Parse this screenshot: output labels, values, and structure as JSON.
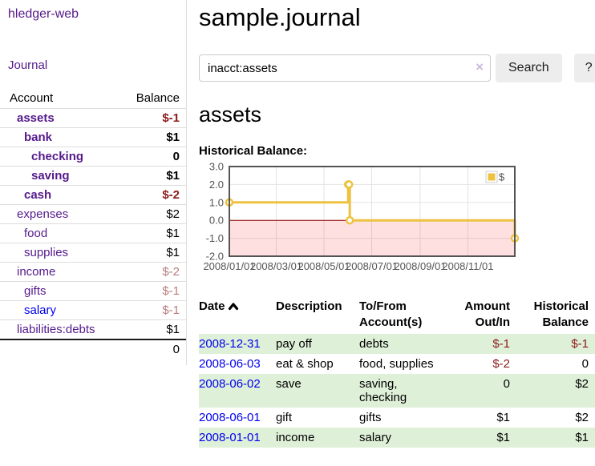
{
  "app": {
    "title": "hledger-web"
  },
  "sidebar": {
    "journal_link": "Journal",
    "accounts_table": {
      "headers": [
        "Account",
        "Balance"
      ],
      "rows": [
        {
          "name": "assets",
          "balance": "$-1",
          "depth": 1,
          "bold": true
        },
        {
          "name": "bank",
          "balance": "$1",
          "depth": 2,
          "bold": true
        },
        {
          "name": "checking",
          "balance": "0",
          "depth": 3,
          "bold": true
        },
        {
          "name": "saving",
          "balance": "$1",
          "depth": 3,
          "bold": true
        },
        {
          "name": "cash",
          "balance": "$-2",
          "depth": 2,
          "bold": true
        },
        {
          "name": "expenses",
          "balance": "$2",
          "depth": 1,
          "bold": false
        },
        {
          "name": "food",
          "balance": "$1",
          "depth": 2,
          "bold": false
        },
        {
          "name": "supplies",
          "balance": "$1",
          "depth": 2,
          "bold": false
        },
        {
          "name": "income",
          "balance": "$-2",
          "depth": 1,
          "bold": false
        },
        {
          "name": "gifts",
          "balance": "$-1",
          "depth": 2,
          "bold": false
        },
        {
          "name": "salary",
          "balance": "$-1",
          "depth": 2,
          "bold": false,
          "link_color": "blue"
        },
        {
          "name": "liabilities:debts",
          "balance": "$1",
          "depth": 1,
          "bold": false
        }
      ],
      "total": "0"
    }
  },
  "header": {
    "title": "sample.journal"
  },
  "search": {
    "value": "inacct:assets",
    "clear_icon": "×",
    "button_label": "Search",
    "help_label": "?"
  },
  "account_page": {
    "heading": "assets",
    "chart_label": "Historical Balance:"
  },
  "chart_data": {
    "type": "line",
    "step": true,
    "title": "Historical Balance:",
    "x_range": [
      "2008-01-01",
      "2008-12-31"
    ],
    "ylim": [
      -2,
      3
    ],
    "y_ticks": [
      "3.0",
      "2.0",
      "1.0",
      "0.0",
      "-1.0",
      "-2.0"
    ],
    "x_ticks": [
      "2008/01/01",
      "2008/03/01",
      "2008/05/01",
      "2008/07/01",
      "2008/09/01",
      "2008/11/01"
    ],
    "series": [
      {
        "name": "$",
        "color": "#edc240",
        "points": [
          {
            "date": "2008-01-01",
            "value": 1
          },
          {
            "date": "2008-06-01",
            "value": 2
          },
          {
            "date": "2008-06-02",
            "value": 2
          },
          {
            "date": "2008-06-03",
            "value": 0
          },
          {
            "date": "2008-12-31",
            "value": -1
          }
        ]
      }
    ],
    "legend": {
      "label": "$",
      "position": "top-right"
    },
    "grid_color": "#e3e3e3",
    "border_color": "#545454",
    "zero_line_color": "#8b0000",
    "negative_region_color": "rgba(255,0,0,0.12)"
  },
  "register": {
    "columns": [
      "Date",
      "Description",
      "To/From Account(s)",
      "Amount Out/In",
      "Historical Balance"
    ],
    "sort": "ascending",
    "rows": [
      {
        "date": "2008-12-31",
        "description": "pay off",
        "accounts": "debts",
        "amount": "$-1",
        "balance": "$-1"
      },
      {
        "date": "2008-06-03",
        "description": "eat & shop",
        "accounts": "food, supplies",
        "amount": "$-2",
        "balance": "0"
      },
      {
        "date": "2008-06-02",
        "description": "save",
        "accounts": "saving, checking",
        "amount": "0",
        "balance": "$2"
      },
      {
        "date": "2008-06-01",
        "description": "gift",
        "accounts": "gifts",
        "amount": "$1",
        "balance": "$2"
      },
      {
        "date": "2008-01-01",
        "description": "income",
        "accounts": "salary",
        "amount": "$1",
        "balance": "$1"
      }
    ]
  },
  "colors": {
    "link-purple": "#551a8b",
    "link-blue": "#0000ee",
    "negative": "#8b1a1a",
    "negative-muted": "#b87d7d",
    "row-stripe-green": "#dff0d8",
    "chart-line-gold": "#edc240"
  }
}
